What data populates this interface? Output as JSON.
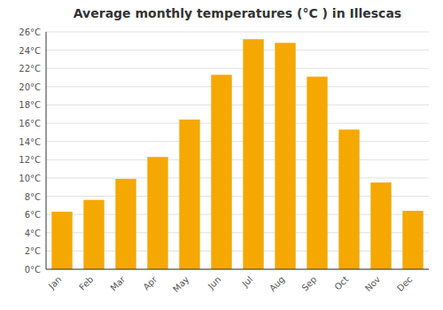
{
  "chart_data": {
    "type": "bar",
    "title": "Average monthly temperatures (°C ) in Illescas",
    "categories": [
      "Jan",
      "Feb",
      "Mar",
      "Apr",
      "May",
      "Jun",
      "Jul",
      "Aug",
      "Sep",
      "Oct",
      "Nov",
      "Dec"
    ],
    "values": [
      6.3,
      7.6,
      9.9,
      12.3,
      16.4,
      21.3,
      25.2,
      24.8,
      21.1,
      15.3,
      9.5,
      6.4
    ],
    "color": "#F5A800",
    "ylim": [
      0,
      26
    ],
    "yticks": [
      {
        "value": 0,
        "label": "0°C"
      },
      {
        "value": 2,
        "label": "2°C"
      },
      {
        "value": 4,
        "label": "4°C"
      },
      {
        "value": 6,
        "label": "6°C"
      },
      {
        "value": 8,
        "label": "8°C"
      },
      {
        "value": 10,
        "label": "10°C"
      },
      {
        "value": 12,
        "label": "12°C"
      },
      {
        "value": 14,
        "label": "14°C"
      },
      {
        "value": 16,
        "label": "16°C"
      },
      {
        "value": 18,
        "label": "18°C"
      },
      {
        "value": 20,
        "label": "20°C"
      },
      {
        "value": 22,
        "label": "22°C"
      },
      {
        "value": 24,
        "label": "24°C"
      },
      {
        "value": 26,
        "label": "26°C"
      }
    ],
    "grid": true
  }
}
